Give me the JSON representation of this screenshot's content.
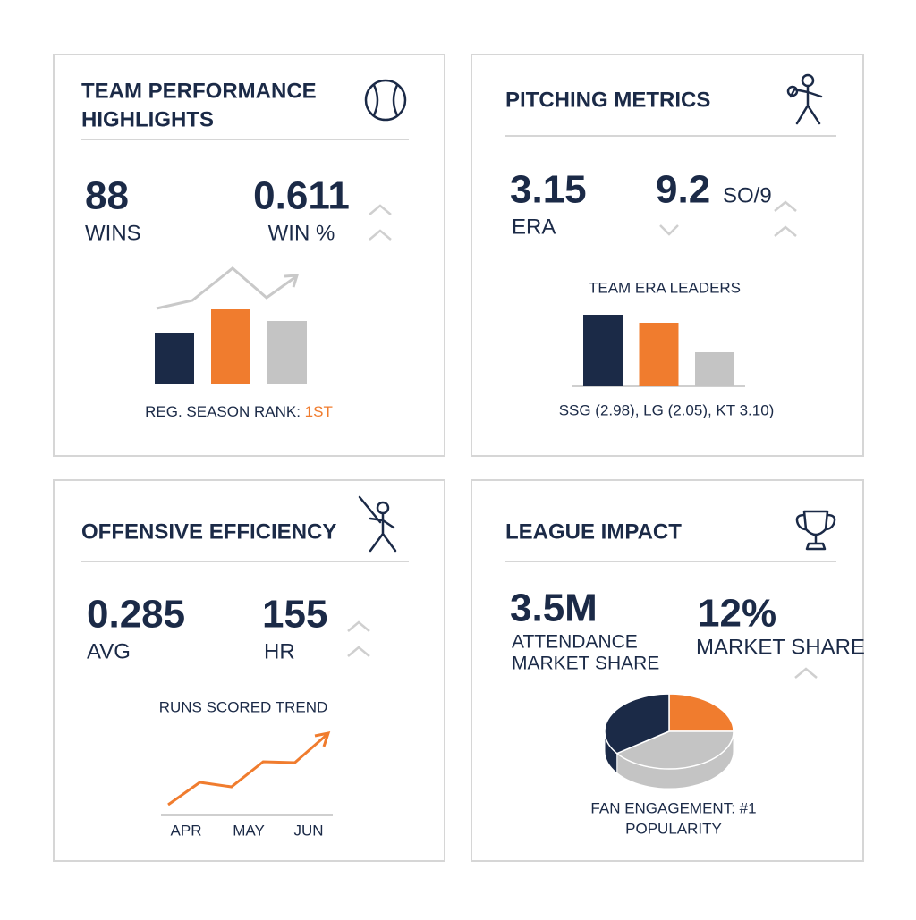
{
  "panels": [
    {
      "title": [
        "TEAM PERFORMANCE",
        "HIGHLIGHTS"
      ],
      "stats": [
        {
          "value": "88",
          "label": "WINS"
        },
        {
          "value": "0.611",
          "label": "WIN %"
        }
      ],
      "chart": {
        "type": "bar",
        "values": [
          57,
          84,
          71
        ],
        "colors": [
          "#1b2a47",
          "#f07c2e",
          "#c4c4c4"
        ]
      },
      "footer": {
        "label": "REG. SEASON RANK: ",
        "highlight": "1ST"
      }
    },
    {
      "title": "PITCHING METRICS",
      "stats": [
        {
          "value": "3.15",
          "label": "ERA"
        },
        {
          "value": "9.2",
          "label": "SO/9"
        }
      ],
      "chart": {
        "type": "bar",
        "title": "TEAM ERA LEADERS",
        "values": [
          80,
          71,
          38
        ],
        "colors": [
          "#1b2a47",
          "#f07c2e",
          "#c4c4c4"
        ]
      },
      "footer": {
        "label": "SSG (2.98), LG (2.05), KT 3.10)"
      }
    },
    {
      "title": "OFFENSIVE EFFICIENCY",
      "stats": [
        {
          "value": "0.285",
          "label": "AVG"
        },
        {
          "value": "155",
          "label": "HR"
        }
      ],
      "chart": {
        "type": "line",
        "title": "RUNS SCORED TREND",
        "values": [
          12,
          37,
          32,
          60,
          59,
          90
        ],
        "color": "#f07c2e",
        "axis_labels": [
          "APR",
          "MAY",
          "JUN"
        ]
      }
    },
    {
      "title": "LEAGUE IMPACT",
      "stats": [
        {
          "value": "3.5M",
          "label": [
            "ATTENDANCE",
            "MARKET SHARE"
          ]
        },
        {
          "value": "12%",
          "label": "MARKET SHARE"
        }
      ],
      "chart": {
        "type": "pie",
        "values": [
          25,
          40,
          35
        ],
        "colors": [
          "#f07c2e",
          "#c4c4c4",
          "#1b2a47"
        ]
      },
      "footer": {
        "label": [
          "FAN ENGAGEMENT: #1",
          "POPULARITY"
        ]
      }
    }
  ]
}
